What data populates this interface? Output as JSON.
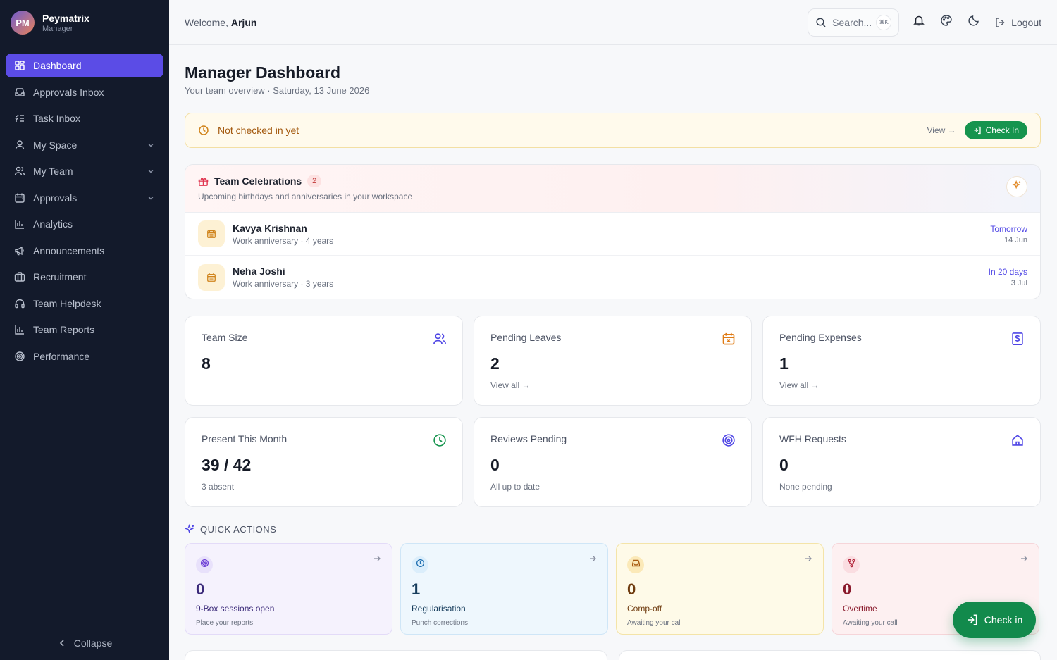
{
  "brand": {
    "initials": "PM",
    "name": "Peymatrix",
    "role": "Manager"
  },
  "sidebar": {
    "items": [
      {
        "label": "Dashboard",
        "icon": "dashboard-icon",
        "active": true
      },
      {
        "label": "Approvals Inbox",
        "icon": "inbox-icon"
      },
      {
        "label": "Task Inbox",
        "icon": "tasks-icon"
      },
      {
        "label": "My Space",
        "icon": "user-icon",
        "expandable": true
      },
      {
        "label": "My Team",
        "icon": "team-icon",
        "expandable": true
      },
      {
        "label": "Approvals",
        "icon": "calendar-icon",
        "expandable": true
      },
      {
        "label": "Analytics",
        "icon": "chart-icon"
      },
      {
        "label": "Announcements",
        "icon": "megaphone-icon"
      },
      {
        "label": "Recruitment",
        "icon": "briefcase-icon"
      },
      {
        "label": "Team Helpdesk",
        "icon": "headset-icon"
      },
      {
        "label": "Team Reports",
        "icon": "chart-icon"
      },
      {
        "label": "Performance",
        "icon": "target-icon"
      }
    ],
    "collapse_label": "Collapse"
  },
  "header": {
    "welcome_prefix": "Welcome,",
    "user": "Arjun",
    "search_placeholder": "Search...",
    "search_shortcut": "⌘K",
    "logout_label": "Logout"
  },
  "page": {
    "title": "Manager Dashboard",
    "subtitle": "Your team overview · Saturday, 13 June 2026"
  },
  "checkin_alert": {
    "text": "Not checked in yet",
    "view_label": "View →",
    "button_label": "Check In"
  },
  "celebrations": {
    "title": "Team Celebrations",
    "count": "2",
    "subtitle": "Upcoming birthdays and anniversaries in your workspace",
    "items": [
      {
        "name": "Kavya Krishnan",
        "meta": "Work anniversary · 4 years",
        "relative": "Tomorrow",
        "date": "14 Jun"
      },
      {
        "name": "Neha Joshi",
        "meta": "Work anniversary · 3 years",
        "relative": "In 20 days",
        "date": "3 Jul"
      }
    ]
  },
  "stats": [
    {
      "label": "Team Size",
      "value": "8",
      "sub": "",
      "icon": "team-icon",
      "color": "#4f46e5"
    },
    {
      "label": "Pending Leaves",
      "value": "2",
      "sub": "View all →",
      "icon": "calendar-x-icon",
      "color": "#e07b14"
    },
    {
      "label": "Pending Expenses",
      "value": "1",
      "sub": "View all →",
      "icon": "receipt-icon",
      "color": "#4f46e5"
    },
    {
      "label": "Present This Month",
      "value": "39 / 42",
      "sub": "3 absent",
      "icon": "clock-icon",
      "color": "#16944e"
    },
    {
      "label": "Reviews Pending",
      "value": "0",
      "sub": "All up to date",
      "icon": "target-icon",
      "color": "#4f46e5"
    },
    {
      "label": "WFH Requests",
      "value": "0",
      "sub": "None pending",
      "icon": "home-icon",
      "color": "#4f46e5"
    }
  ],
  "quick_actions": {
    "title": "QUICK ACTIONS",
    "items": [
      {
        "value": "0",
        "label": "9-Box sessions open",
        "sub": "Place your reports",
        "icon": "target-icon",
        "theme": "purple"
      },
      {
        "value": "1",
        "label": "Regularisation",
        "sub": "Punch corrections",
        "icon": "clock-icon",
        "theme": "blue"
      },
      {
        "value": "0",
        "label": "Comp-off",
        "sub": "Awaiting your call",
        "icon": "inbox-icon",
        "theme": "yellow"
      },
      {
        "value": "0",
        "label": "Overtime",
        "sub": "Awaiting your call",
        "icon": "branch-icon",
        "theme": "red"
      }
    ]
  },
  "fab": {
    "label": "Check in"
  }
}
